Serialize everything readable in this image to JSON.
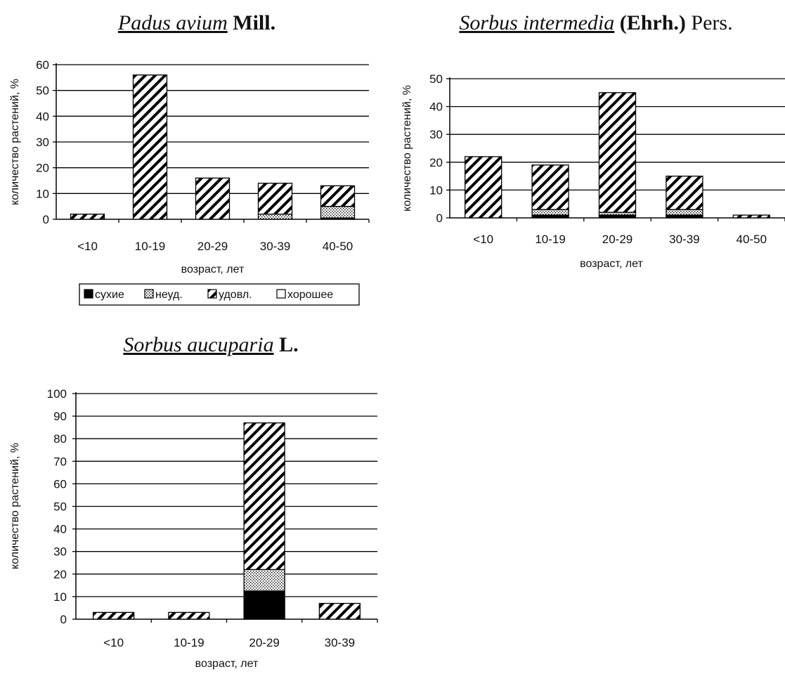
{
  "legend": {
    "items": [
      {
        "label": "сухие",
        "fill": "black"
      },
      {
        "label": "неуд.",
        "fill": "dots"
      },
      {
        "label": "удовл.",
        "fill": "hatch"
      },
      {
        "label": "хорошее",
        "fill": "white"
      }
    ]
  },
  "colors": {
    "bar_stroke": "#000000",
    "grid": "#000000",
    "background": "#ffffff"
  },
  "chart_data": [
    {
      "type": "bar",
      "stacked": true,
      "title_parts": [
        {
          "text": "Padus avium",
          "style": "italic"
        },
        {
          "text": " Mill.",
          "style": "bold"
        }
      ],
      "xlabel": "возраст, лет",
      "ylabel": "количество растений, %",
      "ylim": [
        0,
        60
      ],
      "yticks": [
        0,
        10,
        20,
        30,
        40,
        50,
        60
      ],
      "grid": true,
      "categories": [
        "<10",
        "10-19",
        "20-29",
        "30-39",
        "40-50"
      ],
      "series": [
        {
          "name": "сухие",
          "values": [
            0,
            0,
            0,
            0,
            0.5
          ]
        },
        {
          "name": "неуд.",
          "values": [
            0,
            0,
            0,
            2,
            4.5
          ]
        },
        {
          "name": "удовл.",
          "values": [
            2,
            56,
            16,
            12,
            8
          ]
        },
        {
          "name": "хорошее",
          "values": [
            0,
            0,
            0,
            0,
            0
          ]
        }
      ]
    },
    {
      "type": "bar",
      "stacked": true,
      "title_parts": [
        {
          "text": "Sorbus intermedia",
          "style": "italic"
        },
        {
          "text": " (Ehrh.)",
          "style": "bold"
        },
        {
          "text": " Pers.",
          "style": "normal"
        }
      ],
      "xlabel": "возраст, лет",
      "ylabel": "количество растений, %",
      "ylim": [
        0,
        50
      ],
      "yticks": [
        0,
        10,
        20,
        30,
        40,
        50
      ],
      "grid": true,
      "categories": [
        "<10",
        "10-19",
        "20-29",
        "30-39",
        "40-50"
      ],
      "series": [
        {
          "name": "сухие",
          "values": [
            0,
            1,
            1,
            1,
            0
          ]
        },
        {
          "name": "неуд.",
          "values": [
            0,
            2,
            1,
            2,
            0
          ]
        },
        {
          "name": "удовл.",
          "values": [
            22,
            16,
            43,
            12,
            1
          ]
        },
        {
          "name": "хорошее",
          "values": [
            0,
            0,
            0,
            0,
            0
          ]
        }
      ]
    },
    {
      "type": "bar",
      "stacked": true,
      "title_parts": [
        {
          "text": "Sorbus aucuparia",
          "style": "italic"
        },
        {
          "text": " L.",
          "style": "bold"
        }
      ],
      "xlabel": "возраст, лет",
      "ylabel": "количество растений, %",
      "ylim": [
        0,
        100
      ],
      "yticks": [
        0,
        10,
        20,
        30,
        40,
        50,
        60,
        70,
        80,
        90,
        100
      ],
      "grid": true,
      "categories": [
        "<10",
        "10-19",
        "20-29",
        "30-39"
      ],
      "series": [
        {
          "name": "сухие",
          "values": [
            0,
            0,
            12.5,
            0
          ]
        },
        {
          "name": "неуд.",
          "values": [
            0,
            0,
            9.5,
            0
          ]
        },
        {
          "name": "удовл.",
          "values": [
            3,
            3,
            65,
            7
          ]
        },
        {
          "name": "хорошее",
          "values": [
            0,
            0,
            0,
            0
          ]
        }
      ]
    }
  ]
}
